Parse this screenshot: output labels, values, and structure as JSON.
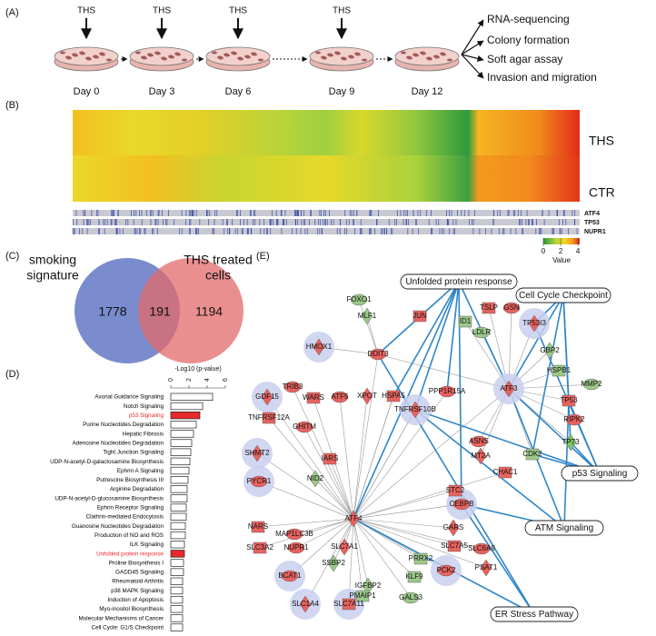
{
  "panel_a": {
    "label": "(A)",
    "treatments": [
      "THS",
      "THS",
      "THS",
      "THS"
    ],
    "days": [
      "Day 0",
      "Day 3",
      "Day 6",
      "Day 9",
      "Day 12"
    ],
    "outcomes": [
      "RNA-sequencing",
      "Colony formation",
      "Soft agar assay",
      "Invasion and migration"
    ]
  },
  "panel_b": {
    "label": "(B)",
    "rows": [
      "THS",
      "CTR"
    ],
    "genes": [
      "ATF4",
      "TP53",
      "NUPR1"
    ],
    "scale_ticks": [
      0,
      2,
      4
    ],
    "scale_lim": [
      0,
      4.2
    ],
    "scale_title": "Value"
  },
  "panel_c": {
    "label": "(C)",
    "left_set": [
      "smoking",
      "signature"
    ],
    "right_set": [
      "THS treated",
      "cells"
    ],
    "left_only": 1778,
    "overlap": 191,
    "right_only": 1194,
    "left_color": "#6b7fc8",
    "right_color": "#e36a6a"
  },
  "panel_d": {
    "label": "(D)",
    "type": "bar",
    "xlabel": "-Log10 (p-value)",
    "xlim": [
      0,
      6
    ],
    "xticks": [
      0,
      2,
      4,
      6
    ],
    "categories": [
      "Axonal Guidance Signaling",
      "Notch Signaling",
      "p53 Signaling",
      "Purine Nucleotides Degradation",
      "Hepatic Fibrosis",
      "Adenosine Nucleotides Degradation",
      "Tight Junction Signaling",
      "UDP-N-acetyl-D-galactosamine Biosynthesis",
      "Ephrin A Signaling",
      "Putrescine Biosynthesis III",
      "Arginine Degradation",
      "UDP-N-acetyl-D-glucosamine Biosynthesis",
      "Ephrin Receptor Signaling",
      "Clathrin-mediated Endocytosis",
      "Guanosine Nucleotides Degradation",
      "Production of NO and ROS",
      "ILK Signaling",
      "Unfolded protein response",
      "Proline Biosynthesis I",
      "GADD45 Signaling",
      "Rheumatoid Arthritis",
      "p38 MAPK Signaling",
      "Induction of Apoptosis",
      "Myo-inositol Biosynthesis",
      "Molecular Mechanisms of Cancer",
      "Cell Cycle: G1/S Checkpoint"
    ],
    "values": [
      4.6,
      3.5,
      3.2,
      2.8,
      2.5,
      2.3,
      2.2,
      2.1,
      2.0,
      1.9,
      1.8,
      1.8,
      1.7,
      1.7,
      1.6,
      1.6,
      1.5,
      1.5,
      1.4,
      1.4,
      1.3,
      1.3,
      1.3,
      1.3,
      1.3,
      1.3
    ],
    "colors": [
      "#ffffff",
      "#ffffff",
      "#e8282b",
      "#ffffff",
      "#ffffff",
      "#ffffff",
      "#ffffff",
      "#ffffff",
      "#ffffff",
      "#ffffff",
      "#ffffff",
      "#ffffff",
      "#ffffff",
      "#ffffff",
      "#ffffff",
      "#ffffff",
      "#ffffff",
      "#e8282b",
      "#ffffff",
      "#ffffff",
      "#ffffff",
      "#ffffff",
      "#ffffff",
      "#ffffff",
      "#ffffff",
      "#ffffff"
    ],
    "label_colors": [
      "#000000",
      "#000000",
      "#e8282b",
      "#000000",
      "#000000",
      "#000000",
      "#000000",
      "#000000",
      "#000000",
      "#000000",
      "#000000",
      "#000000",
      "#000000",
      "#000000",
      "#000000",
      "#000000",
      "#000000",
      "#e8282b",
      "#000000",
      "#000000",
      "#000000",
      "#000000",
      "#000000",
      "#000000",
      "#000000",
      "#000000"
    ]
  },
  "panel_e": {
    "label": "(E)",
    "pathways": [
      "Unfolded protein response",
      "Cell Cycle Checkpoint",
      "p53 Signaling",
      "ATM Signaling",
      "ER Stress Pathway"
    ],
    "nodes": [
      {
        "label": "FOXO1",
        "color": "#9cc98a"
      },
      {
        "label": "MLF1",
        "color": "#9cc98a"
      },
      {
        "label": "JUN",
        "color": "#e8625f"
      },
      {
        "label": "DDIT3",
        "color": "#e8625f"
      },
      {
        "label": "HMOX1",
        "color": "#e8625f"
      },
      {
        "label": "TSLP",
        "color": "#e8625f"
      },
      {
        "label": "GSN",
        "color": "#e8625f"
      },
      {
        "label": "TP53I3",
        "color": "#e8625f"
      },
      {
        "label": "ID1",
        "color": "#9cc98a"
      },
      {
        "label": "LDLR",
        "color": "#9cc98a"
      },
      {
        "label": "GBP2",
        "color": "#9cc98a"
      },
      {
        "label": "HSPB1",
        "color": "#9cc98a"
      },
      {
        "label": "MMP2",
        "color": "#9cc98a"
      },
      {
        "label": "ATF3",
        "color": "#e8625f"
      },
      {
        "label": "TP53",
        "color": "#e8625f"
      },
      {
        "label": "RIPK2",
        "color": "#e8625f"
      },
      {
        "label": "TP73",
        "color": "#7cc46a"
      },
      {
        "label": "CDK2",
        "color": "#9cc98a"
      },
      {
        "label": "TRIB3",
        "color": "#e8625f"
      },
      {
        "label": "GDF15",
        "color": "#e8625f"
      },
      {
        "label": "WARS",
        "color": "#e8625f"
      },
      {
        "label": "ATF5",
        "color": "#e8625f"
      },
      {
        "label": "XPOT",
        "color": "#e8625f"
      },
      {
        "label": "HSPA5",
        "color": "#e8625f"
      },
      {
        "label": "PPP1R15A",
        "color": "#e8625f"
      },
      {
        "label": "TNFRSF10B",
        "color": "#e8625f"
      },
      {
        "label": "TNFRSF12A",
        "color": "#e8625f"
      },
      {
        "label": "GHITM",
        "color": "#e8625f"
      },
      {
        "label": "SHMT2",
        "color": "#e8625f"
      },
      {
        "label": "IARS",
        "color": "#e8625f"
      },
      {
        "label": "ASNS",
        "color": "#e8625f"
      },
      {
        "label": "MT2A",
        "color": "#e8625f"
      },
      {
        "label": "CHAC1",
        "color": "#e8625f"
      },
      {
        "label": "PYCR1",
        "color": "#e8625f"
      },
      {
        "label": "NID2",
        "color": "#9cc98a"
      },
      {
        "label": "STC2",
        "color": "#e8625f"
      },
      {
        "label": "CEBPB",
        "color": "#e8625f"
      },
      {
        "label": "ATF4",
        "color": "#e8625f"
      },
      {
        "label": "NARS",
        "color": "#e8625f"
      },
      {
        "label": "MAP1LC3B",
        "color": "#e8625f"
      },
      {
        "label": "GARS",
        "color": "#e8625f"
      },
      {
        "label": "SLC3A2",
        "color": "#e8625f"
      },
      {
        "label": "NUPR1",
        "color": "#e8625f"
      },
      {
        "label": "SLC7A1",
        "color": "#e8625f"
      },
      {
        "label": "SLC7A5",
        "color": "#e8625f"
      },
      {
        "label": "SLC6A9",
        "color": "#e8625f"
      },
      {
        "label": "SSBP2",
        "color": "#9cc98a"
      },
      {
        "label": "PRRX2",
        "color": "#9cc98a"
      },
      {
        "label": "PCK2",
        "color": "#e8625f"
      },
      {
        "label": "PSAT1",
        "color": "#e8625f"
      },
      {
        "label": "KLF9",
        "color": "#9cc98a"
      },
      {
        "label": "BCAT1",
        "color": "#e8625f"
      },
      {
        "label": "IGFBP2",
        "color": "#9cc98a"
      },
      {
        "label": "PMAIP1",
        "color": "#9cc98a"
      },
      {
        "label": "GALS3",
        "color": "#9cc98a"
      },
      {
        "label": "SLC1A4",
        "color": "#e8625f"
      },
      {
        "label": "SLC7A11",
        "color": "#e8625f"
      }
    ]
  }
}
